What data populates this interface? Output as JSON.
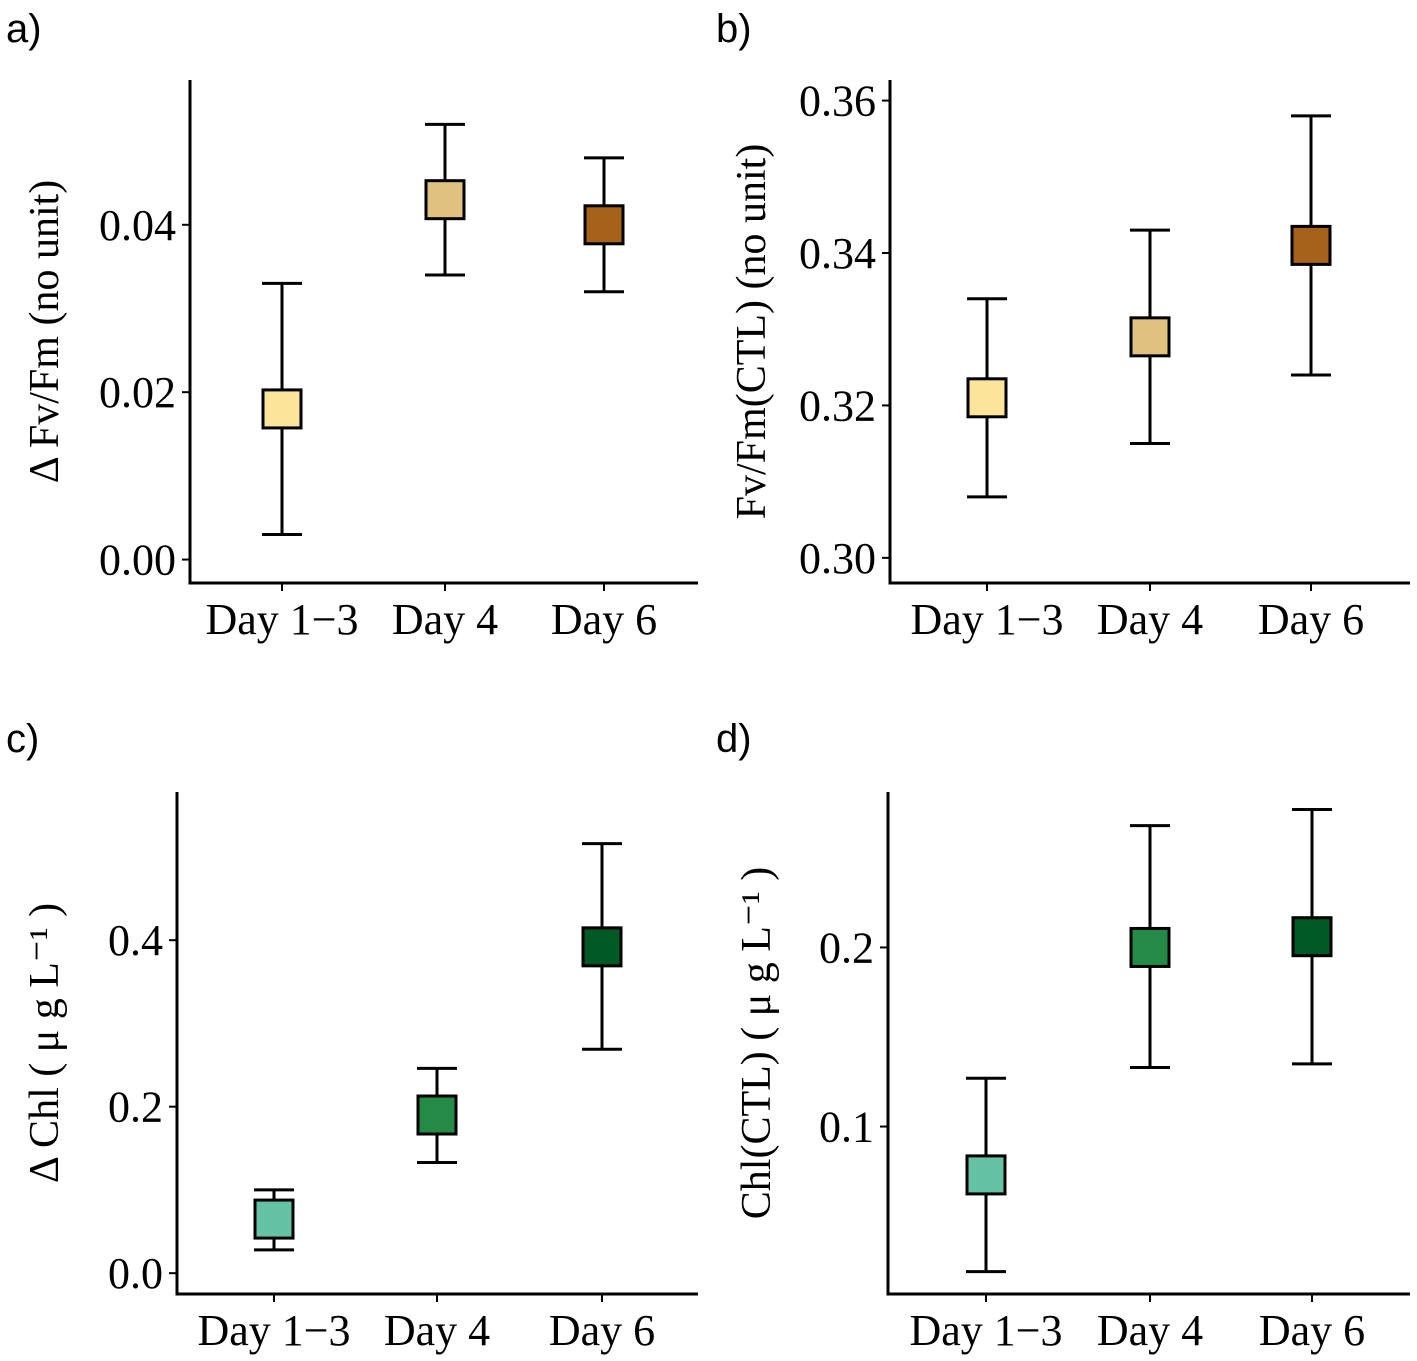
{
  "figure": {
    "panels": [
      {
        "id": "a",
        "letter": "a)"
      },
      {
        "id": "b",
        "letter": "b)"
      },
      {
        "id": "c",
        "letter": "c)"
      },
      {
        "id": "d",
        "letter": "d)"
      }
    ]
  },
  "chart_data": [
    {
      "panel": "a",
      "type": "scatter",
      "title": "",
      "xlabel": "",
      "ylabel": "Δ Fv/Fm (no unit)",
      "categories": [
        "Day 1−3",
        "Day 4",
        "Day 6"
      ],
      "ylim": [
        -0.0028,
        0.0573
      ],
      "yticks": [
        0.0,
        0.02,
        0.04
      ],
      "ytick_labels": [
        "0.00",
        "0.02",
        "0.04"
      ],
      "points": [
        {
          "category": "Day 1−3",
          "value": 0.018,
          "lower": 0.003,
          "upper": 0.033,
          "color": "#FDE49B"
        },
        {
          "category": "Day 4",
          "value": 0.043,
          "lower": 0.034,
          "upper": 0.052,
          "color": "#DFC27D"
        },
        {
          "category": "Day 6",
          "value": 0.04,
          "lower": 0.032,
          "upper": 0.048,
          "color": "#A6611A"
        }
      ]
    },
    {
      "panel": "b",
      "type": "scatter",
      "title": "",
      "xlabel": "",
      "ylabel": "Fv/Fm(CTL) (no unit)",
      "categories": [
        "Day 1−3",
        "Day 4",
        "Day 6"
      ],
      "ylim": [
        0.2967,
        0.3627
      ],
      "yticks": [
        0.3,
        0.32,
        0.34,
        0.36
      ],
      "ytick_labels": [
        "0.30",
        "0.32",
        "0.34",
        "0.36"
      ],
      "points": [
        {
          "category": "Day 1−3",
          "value": 0.321,
          "lower": 0.308,
          "upper": 0.334,
          "color": "#FDE49B"
        },
        {
          "category": "Day 4",
          "value": 0.329,
          "lower": 0.315,
          "upper": 0.343,
          "color": "#DFC27D"
        },
        {
          "category": "Day 6",
          "value": 0.341,
          "lower": 0.324,
          "upper": 0.358,
          "color": "#A6611A"
        }
      ]
    },
    {
      "panel": "c",
      "type": "scatter",
      "title": "",
      "xlabel": "",
      "ylabel": "Δ Chl ( μ g L⁻¹ )",
      "categories": [
        "Day 1−3",
        "Day 4",
        "Day 6"
      ],
      "ylim": [
        -0.025,
        0.578
      ],
      "yticks": [
        0.0,
        0.2,
        0.4
      ],
      "ytick_labels": [
        "0.0",
        "0.2",
        "0.4"
      ],
      "points": [
        {
          "category": "Day 1−3",
          "value": 0.065,
          "lower": 0.028,
          "upper": 0.1,
          "color": "#66C2A4"
        },
        {
          "category": "Day 4",
          "value": 0.19,
          "lower": 0.133,
          "upper": 0.246,
          "color": "#238B45"
        },
        {
          "category": "Day 6",
          "value": 0.392,
          "lower": 0.269,
          "upper": 0.516,
          "color": "#005824"
        }
      ]
    },
    {
      "panel": "d",
      "type": "scatter",
      "title": "",
      "xlabel": "",
      "ylabel": "Chl(CTL) ( μ g L⁻¹ )",
      "categories": [
        "Day 1−3",
        "Day 4",
        "Day 6"
      ],
      "ylim": [
        0.0065,
        0.2868
      ],
      "yticks": [
        0.1,
        0.2
      ],
      "ytick_labels": [
        "0.1",
        "0.2"
      ],
      "points": [
        {
          "category": "Day 1−3",
          "value": 0.073,
          "lower": 0.019,
          "upper": 0.127,
          "color": "#66C2A4"
        },
        {
          "category": "Day 4",
          "value": 0.2,
          "lower": 0.133,
          "upper": 0.268,
          "color": "#238B45"
        },
        {
          "category": "Day 6",
          "value": 0.206,
          "lower": 0.135,
          "upper": 0.277,
          "color": "#005824"
        }
      ]
    }
  ]
}
